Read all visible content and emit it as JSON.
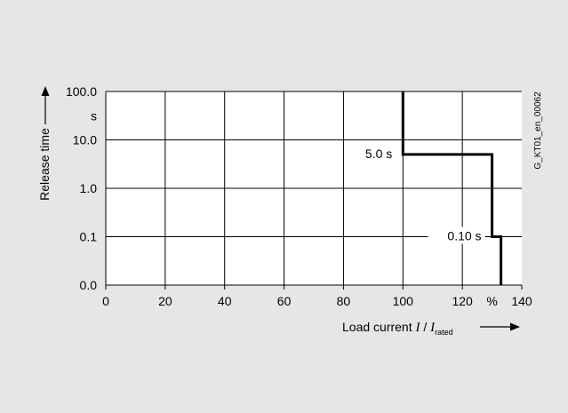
{
  "chart_data": {
    "type": "line",
    "y_scale": "log",
    "x_ticks": [
      0,
      20,
      40,
      60,
      80,
      100,
      120,
      140
    ],
    "x_tick_labels": [
      "0",
      "20",
      "40",
      "60",
      "80",
      "100",
      "120",
      "140"
    ],
    "x_unit_label": "%",
    "y_ticks": [
      0.1,
      1,
      10,
      100
    ],
    "y_tick_labels": [
      "0.1",
      "1.0",
      "10.0",
      "100.0"
    ],
    "y_bottom_label": "0.0",
    "y_unit_label": "s",
    "xlim": [
      0,
      140
    ],
    "ylim": [
      0.01,
      100
    ],
    "grid": true,
    "xlabel": {
      "prefix": "Load current ",
      "var": "I",
      "sep": " / ",
      "var2": "I",
      "sub": "rated"
    },
    "ylabel": "Release time",
    "series": [
      {
        "x": [
          100,
          100,
          130,
          130,
          133,
          133
        ],
        "y": [
          100,
          5,
          5,
          0.1,
          0.1,
          0.01
        ]
      }
    ],
    "annotations": [
      {
        "text": "5.0 s",
        "x": 100,
        "y": 5
      },
      {
        "text": "0.10 s",
        "x": 130,
        "y": 0.1
      }
    ],
    "figure_code": "G_KT01_en_00062"
  }
}
